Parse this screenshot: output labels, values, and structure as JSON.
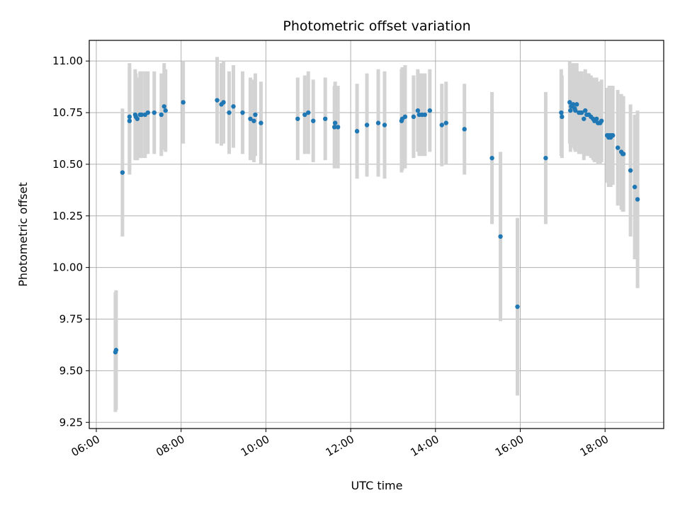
{
  "chart_data": {
    "type": "scatter",
    "title": "Photometric offset variation",
    "xlabel": "UTC time",
    "ylabel": "Photometric offset",
    "x_ticks": [
      "06:00",
      "08:00",
      "10:00",
      "12:00",
      "14:00",
      "16:00",
      "18:00"
    ],
    "x_tick_hours": [
      6,
      8,
      10,
      12,
      14,
      16,
      18
    ],
    "y_ticks": [
      "9.25",
      "9.50",
      "9.75",
      "10.00",
      "10.25",
      "10.50",
      "10.75",
      "11.00"
    ],
    "y_tick_values": [
      9.25,
      9.5,
      9.75,
      10.0,
      10.25,
      10.5,
      10.75,
      11.0
    ],
    "xlim": [
      "05:50",
      "19:23"
    ],
    "ylim": [
      9.22,
      11.1
    ],
    "grid": true,
    "marker_color": "#1f77b4",
    "errorbar_color": "#d3d3d3",
    "series": [
      {
        "x": [
          "06:27",
          "06:28",
          "06:37",
          "06:47",
          "06:47",
          "06:55",
          "06:56",
          "06:58",
          "07:02",
          "07:04",
          "07:09",
          "07:13",
          "07:22",
          "07:32",
          "07:36",
          "07:38",
          "08:03",
          "08:51",
          "08:57",
          "09:00",
          "09:08",
          "09:14",
          "09:27",
          "09:38",
          "09:43",
          "09:45",
          "09:53",
          "10:45",
          "10:55",
          "11:00",
          "11:07",
          "11:24",
          "11:37",
          "11:38",
          "11:42",
          "12:09",
          "12:23",
          "12:39",
          "12:48",
          "13:12",
          "13:13",
          "13:17",
          "13:29",
          "13:35",
          "13:37",
          "13:41",
          "13:45",
          "13:52",
          "14:09",
          "14:15",
          "14:41",
          "15:20",
          "15:32",
          "15:56",
          "16:36",
          "16:58",
          "16:59",
          "17:10",
          "17:11",
          "17:12",
          "17:15",
          "17:17",
          "17:18",
          "17:20",
          "17:23",
          "17:25",
          "17:27",
          "17:30",
          "17:32",
          "17:34",
          "17:37",
          "17:40",
          "17:43",
          "17:45",
          "17:48",
          "17:50",
          "17:51",
          "17:53",
          "17:55",
          "18:03",
          "18:05",
          "18:06",
          "18:08",
          "18:09",
          "18:11",
          "18:18",
          "18:23",
          "18:25",
          "18:26",
          "18:36",
          "18:42",
          "18:46"
        ],
        "y": [
          9.59,
          9.6,
          10.46,
          10.71,
          10.73,
          10.74,
          10.73,
          10.72,
          10.74,
          10.74,
          10.74,
          10.75,
          10.75,
          10.74,
          10.78,
          10.76,
          10.8,
          10.81,
          10.79,
          10.8,
          10.75,
          10.78,
          10.75,
          10.72,
          10.71,
          10.74,
          10.7,
          10.72,
          10.74,
          10.75,
          10.71,
          10.72,
          10.68,
          10.7,
          10.68,
          10.66,
          10.69,
          10.7,
          10.69,
          10.71,
          10.72,
          10.73,
          10.73,
          10.76,
          10.74,
          10.74,
          10.74,
          10.76,
          10.69,
          10.7,
          10.67,
          10.53,
          10.15,
          9.81,
          10.53,
          10.75,
          10.73,
          10.8,
          10.76,
          10.78,
          10.79,
          10.77,
          10.76,
          10.79,
          10.75,
          10.75,
          10.75,
          10.72,
          10.76,
          10.74,
          10.74,
          10.73,
          10.72,
          10.71,
          10.72,
          10.7,
          10.7,
          10.7,
          10.71,
          10.64,
          10.63,
          10.64,
          10.63,
          10.64,
          10.64,
          10.58,
          10.56,
          10.55,
          10.55,
          10.47,
          10.39,
          10.33
        ],
        "yerr": [
          0.29,
          0.29,
          0.31,
          0.26,
          0.26,
          0.22,
          0.21,
          0.2,
          0.21,
          0.21,
          0.21,
          0.2,
          0.2,
          0.2,
          0.21,
          0.2,
          0.2,
          0.21,
          0.2,
          0.2,
          0.2,
          0.2,
          0.2,
          0.2,
          0.2,
          0.2,
          0.2,
          0.2,
          0.19,
          0.2,
          0.2,
          0.2,
          0.2,
          0.2,
          0.2,
          0.23,
          0.25,
          0.26,
          0.26,
          0.25,
          0.25,
          0.25,
          0.2,
          0.2,
          0.2,
          0.2,
          0.2,
          0.2,
          0.2,
          0.2,
          0.22,
          0.32,
          0.41,
          0.43,
          0.32,
          0.21,
          0.2,
          0.2,
          0.2,
          0.2,
          0.2,
          0.2,
          0.2,
          0.2,
          0.2,
          0.2,
          0.2,
          0.2,
          0.2,
          0.2,
          0.2,
          0.2,
          0.2,
          0.2,
          0.2,
          0.2,
          0.2,
          0.2,
          0.2,
          0.23,
          0.24,
          0.24,
          0.24,
          0.24,
          0.24,
          0.28,
          0.28,
          0.28,
          0.28,
          0.32,
          0.35,
          0.43
        ]
      }
    ]
  }
}
